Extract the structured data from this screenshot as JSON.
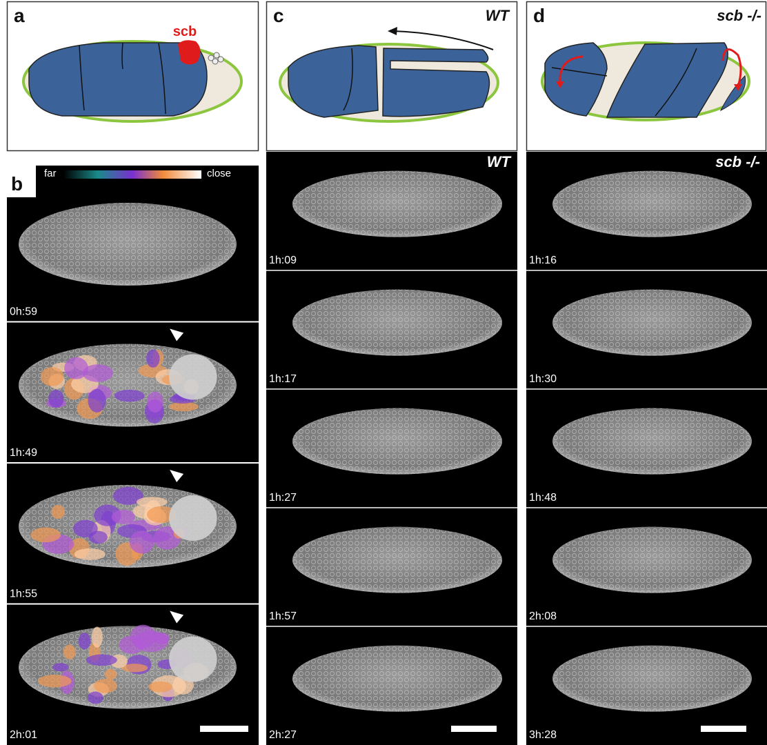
{
  "panels": [
    {
      "label": "a",
      "annotation": "scb"
    },
    {
      "label": "b",
      "colorbar": {
        "low": "far",
        "high": "close"
      },
      "timepoints": [
        "0h:59",
        "1h:49",
        "1h:55",
        "2h:01"
      ]
    },
    {
      "label": "c",
      "genotype": "WT",
      "movie_label": "WT",
      "timepoints": [
        "1h:09",
        "1h:17",
        "1h:27",
        "1h:57",
        "2h:27"
      ]
    },
    {
      "label": "d",
      "genotype": "scb -/-",
      "movie_label": "scb -/-",
      "timepoints": [
        "1h:16",
        "1h:30",
        "1h:48",
        "2h:08",
        "3h:28"
      ]
    }
  ]
}
